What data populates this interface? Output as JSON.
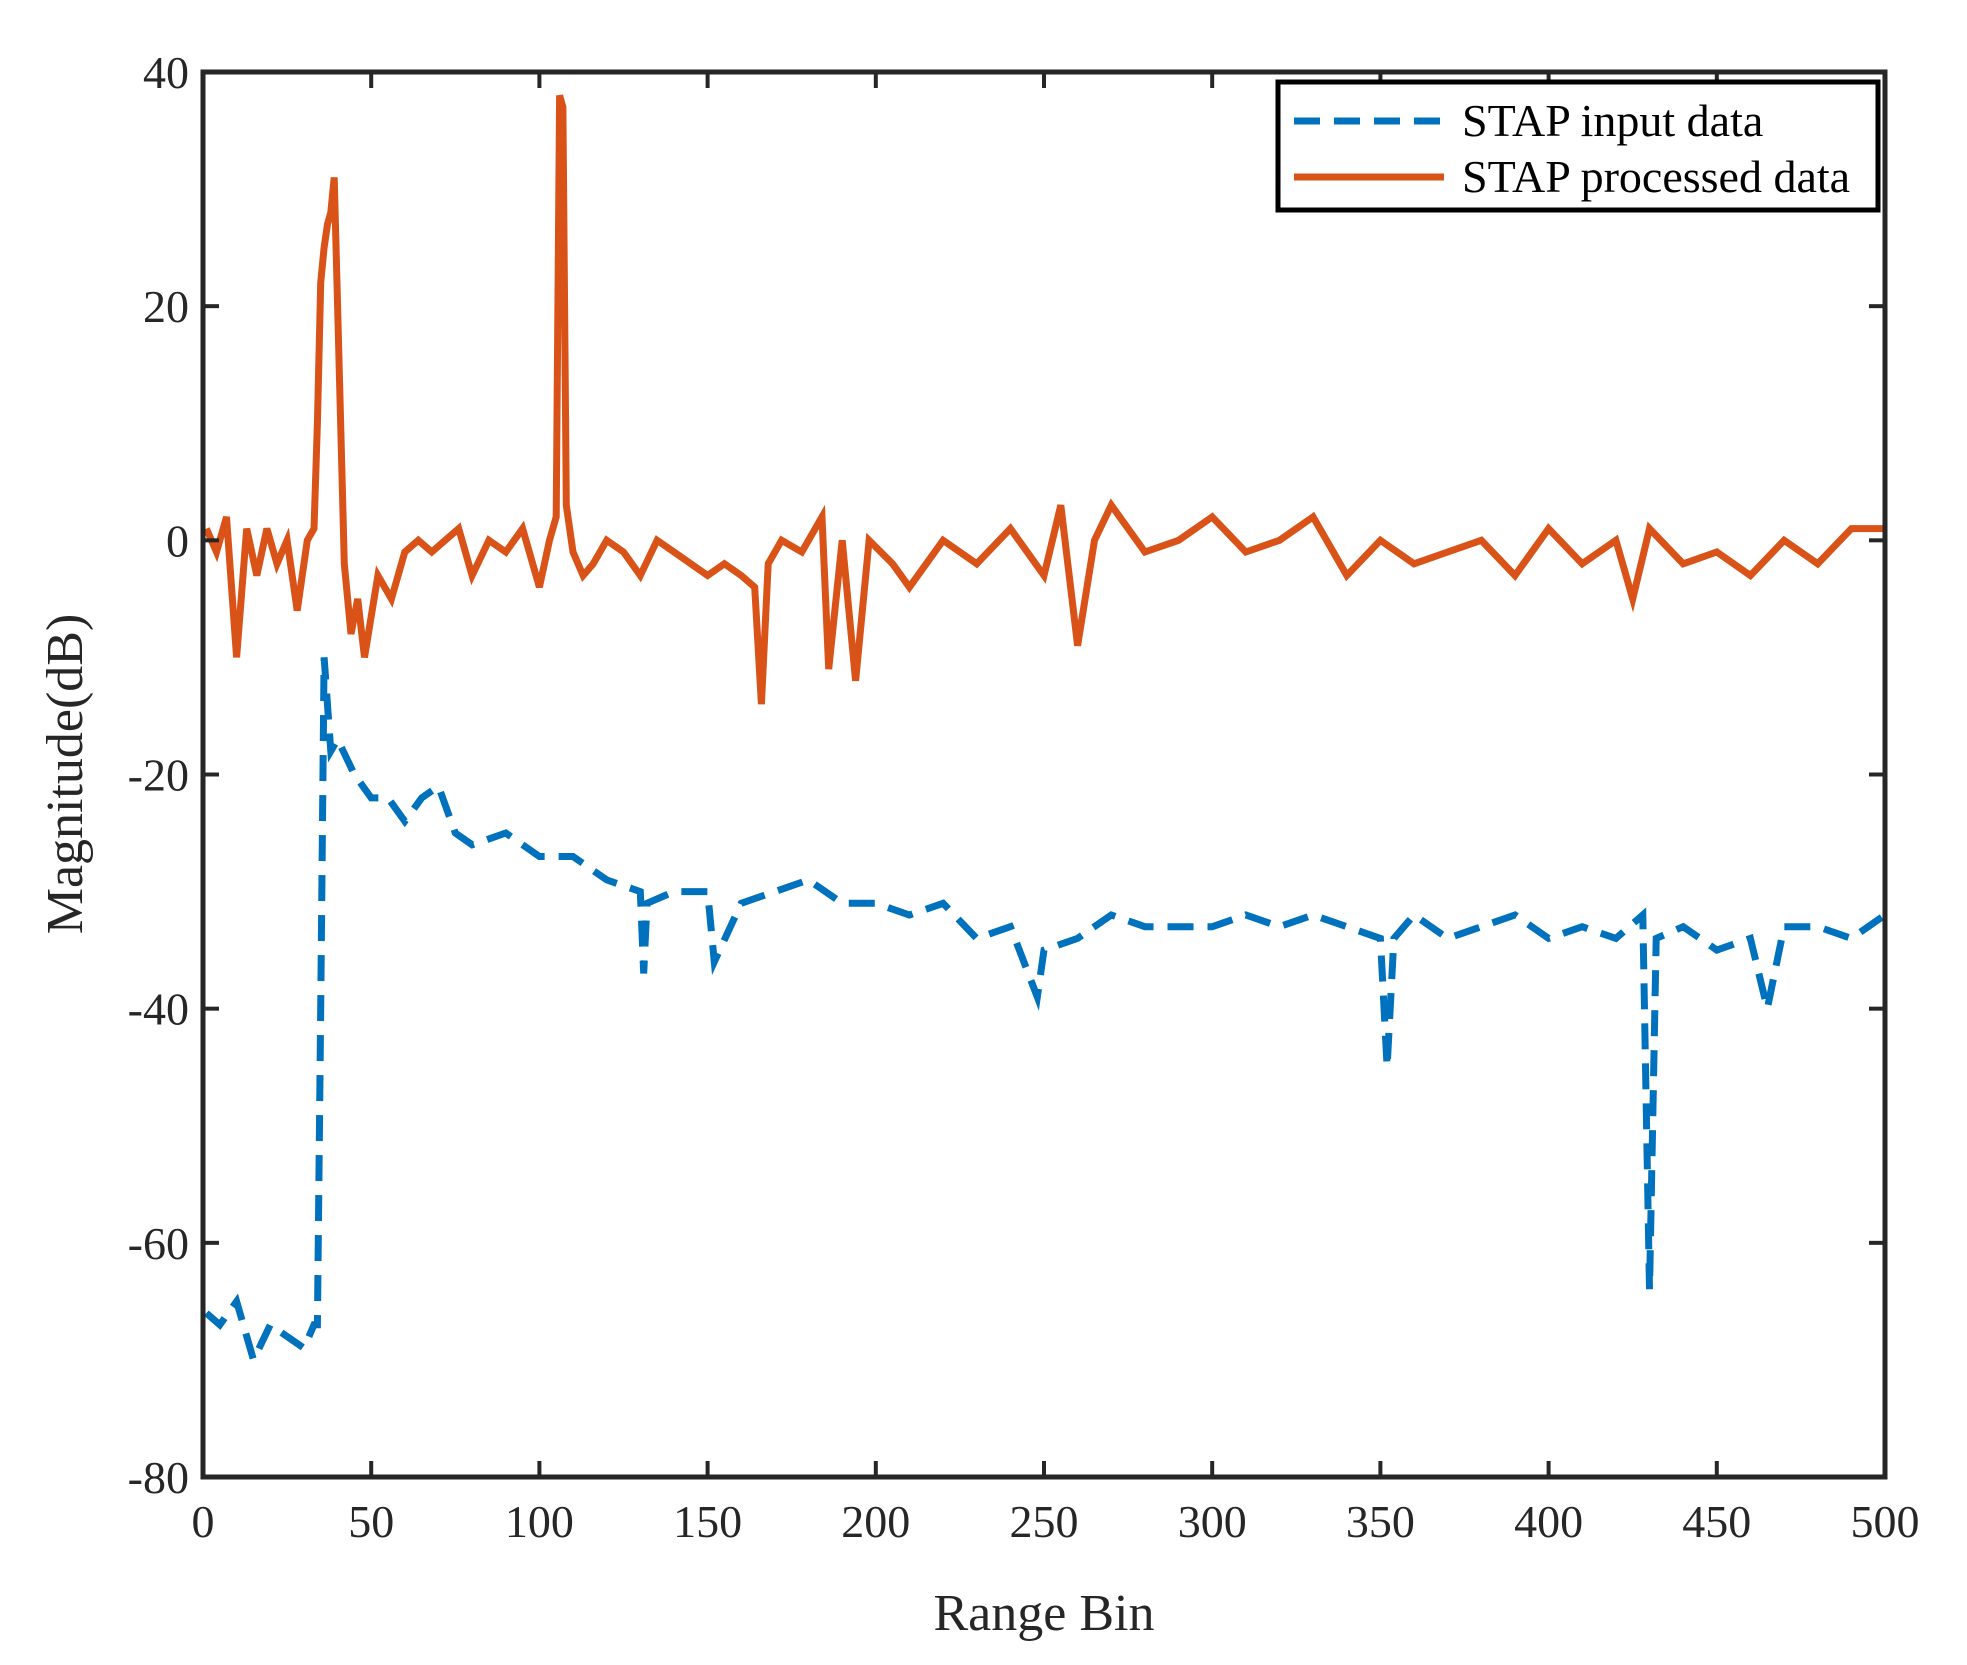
{
  "chart_data": {
    "type": "line",
    "title": "",
    "xlabel": "Range Bin",
    "ylabel": "Magnitude(dB)",
    "xlim": [
      0,
      500
    ],
    "ylim": [
      -80,
      40
    ],
    "xticks": [
      0,
      50,
      100,
      150,
      200,
      250,
      300,
      350,
      400,
      450,
      500
    ],
    "yticks": [
      -80,
      -60,
      -40,
      -20,
      0,
      20,
      40
    ],
    "xtick_labels": [
      "0",
      "50",
      "100",
      "150",
      "200",
      "250",
      "300",
      "350",
      "400",
      "450",
      "500"
    ],
    "ytick_labels": [
      "-80",
      "-60",
      "-40",
      "-20",
      "0",
      "20",
      "40"
    ],
    "grid": false,
    "legend_position": "top-right",
    "legend": [
      "STAP input data",
      "STAP processed data"
    ],
    "series": [
      {
        "name": "STAP input data",
        "style": "dashed",
        "color": "#0072BD",
        "x": [
          1,
          5,
          10,
          15,
          20,
          25,
          30,
          33,
          34,
          35,
          36,
          38,
          40,
          45,
          50,
          55,
          60,
          65,
          70,
          75,
          80,
          90,
          100,
          110,
          120,
          130,
          131,
          132,
          140,
          150,
          152,
          160,
          170,
          180,
          190,
          200,
          210,
          220,
          230,
          240,
          248,
          250,
          260,
          270,
          280,
          290,
          300,
          310,
          320,
          330,
          340,
          350,
          352,
          354,
          360,
          370,
          380,
          390,
          400,
          410,
          420,
          428,
          430,
          432,
          440,
          450,
          460,
          465,
          470,
          480,
          490,
          500
        ],
        "y": [
          -66,
          -67,
          -65,
          -70,
          -67,
          -68,
          -69,
          -67,
          -67,
          -40,
          -10,
          -18,
          -17,
          -20,
          -22,
          -22,
          -24,
          -22,
          -21,
          -25,
          -26,
          -25,
          -27,
          -27,
          -29,
          -30,
          -37,
          -31,
          -30,
          -30,
          -36,
          -31,
          -30,
          -29,
          -31,
          -31,
          -32,
          -31,
          -34,
          -33,
          -39,
          -35,
          -34,
          -32,
          -33,
          -33,
          -33,
          -32,
          -33,
          -32,
          -33,
          -34,
          -45,
          -34,
          -32,
          -34,
          -33,
          -32,
          -34,
          -33,
          -34,
          -32,
          -64,
          -34,
          -33,
          -35,
          -34,
          -40,
          -33,
          -33,
          -34,
          -32
        ]
      },
      {
        "name": "STAP processed data",
        "style": "solid",
        "color": "#D95319",
        "x": [
          1,
          4,
          7,
          10,
          13,
          16,
          19,
          22,
          25,
          28,
          31,
          33,
          34,
          35,
          36,
          37,
          38,
          39,
          40,
          42,
          44,
          46,
          48,
          52,
          56,
          60,
          64,
          68,
          72,
          76,
          80,
          85,
          90,
          95,
          100,
          103,
          105,
          106,
          107,
          108,
          110,
          113,
          116,
          120,
          125,
          130,
          135,
          140,
          145,
          150,
          155,
          160,
          164,
          166,
          168,
          172,
          178,
          184,
          186,
          190,
          194,
          198,
          205,
          210,
          220,
          230,
          240,
          250,
          255,
          260,
          265,
          270,
          280,
          290,
          300,
          310,
          320,
          330,
          340,
          350,
          360,
          370,
          380,
          390,
          400,
          410,
          420,
          425,
          430,
          440,
          450,
          460,
          470,
          480,
          490,
          500
        ],
        "y": [
          1,
          -1,
          2,
          -10,
          1,
          -3,
          1,
          -2,
          0,
          -6,
          0,
          1,
          10,
          22,
          25,
          27,
          28,
          31,
          20,
          -2,
          -8,
          -5,
          -10,
          -3,
          -5,
          -1,
          0,
          -1,
          0,
          1,
          -3,
          0,
          -1,
          1,
          -4,
          0,
          2,
          38,
          37,
          3,
          -1,
          -3,
          -2,
          0,
          -1,
          -3,
          0,
          -1,
          -2,
          -3,
          -2,
          -3,
          -4,
          -14,
          -2,
          0,
          -1,
          2,
          -11,
          0,
          -12,
          0,
          -2,
          -4,
          0,
          -2,
          1,
          -3,
          3,
          -9,
          0,
          3,
          -1,
          0,
          2,
          -1,
          0,
          2,
          -3,
          0,
          -2,
          -1,
          0,
          -3,
          1,
          -2,
          0,
          -5,
          1,
          -2,
          -1,
          -3,
          0,
          -2,
          1,
          1
        ]
      }
    ]
  }
}
